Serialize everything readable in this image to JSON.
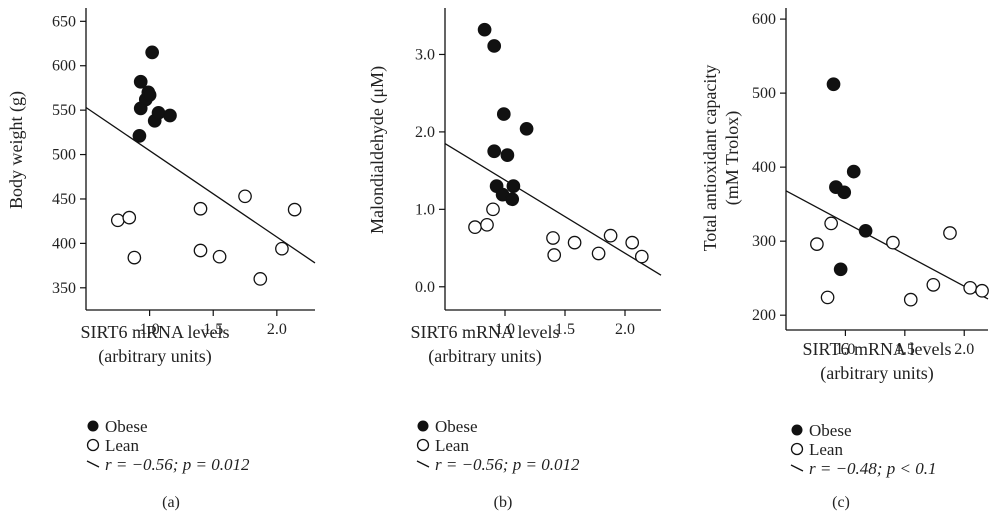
{
  "chart_data": [
    {
      "type": "scatter",
      "panel_label": "(a)",
      "xlabel": "SIRT6 mRNA levels",
      "xlabel2": "(arbitrary units)",
      "ylabel": "Body weight (g)",
      "ylabel2": "",
      "xlim": [
        0.5,
        2.3
      ],
      "ylim": [
        325,
        665
      ],
      "xticks": [
        1.0,
        1.5,
        2.0
      ],
      "xtick_labels": [
        "1.0",
        "1.5",
        "2.0"
      ],
      "yticks": [
        350,
        400,
        450,
        500,
        550,
        600,
        650
      ],
      "ytick_labels": [
        "350",
        "400",
        "450",
        "500",
        "550",
        "600",
        "650"
      ],
      "series": [
        {
          "name": "Obese",
          "marker": "filled-circle",
          "x": [
            0.93,
            0.93,
            0.97,
            0.99,
            1.0,
            1.02,
            1.04,
            1.07,
            1.16,
            0.92
          ],
          "y": [
            582,
            552,
            562,
            570,
            567,
            615,
            538,
            547,
            544,
            521
          ]
        },
        {
          "name": "Lean",
          "marker": "open-circle",
          "x": [
            0.75,
            0.84,
            0.88,
            1.4,
            1.4,
            1.55,
            1.75,
            1.87,
            2.04,
            2.14
          ],
          "y": [
            426,
            429,
            384,
            439,
            392,
            385,
            453,
            360,
            394,
            438
          ]
        }
      ],
      "fit_line": {
        "x": [
          0.5,
          2.3
        ],
        "y": [
          553,
          378
        ]
      },
      "legend": {
        "obese": "Obese",
        "lean": "Lean",
        "line": "r = −0.56; p = 0.012"
      }
    },
    {
      "type": "scatter",
      "panel_label": "(b)",
      "xlabel": "SIRT6 mRNA levels",
      "xlabel2": "(arbitrary units)",
      "ylabel": "Malondialdehyde (μM)",
      "ylabel2": "",
      "xlim": [
        0.5,
        2.3
      ],
      "ylim": [
        -0.3,
        3.6
      ],
      "xticks": [
        1.0,
        1.5,
        2.0
      ],
      "xtick_labels": [
        "1.0",
        "1.5",
        "2.0"
      ],
      "yticks": [
        0.0,
        1.0,
        2.0,
        3.0
      ],
      "ytick_labels": [
        "0.0",
        "1.0",
        "2.0",
        "3.0"
      ],
      "series": [
        {
          "name": "Obese",
          "marker": "filled-circle",
          "x": [
            0.83,
            0.91,
            0.91,
            0.93,
            0.98,
            0.99,
            1.02,
            1.06,
            1.07,
            1.18
          ],
          "y": [
            3.32,
            3.11,
            1.75,
            1.3,
            1.19,
            2.23,
            1.7,
            1.13,
            1.3,
            2.04
          ]
        },
        {
          "name": "Lean",
          "marker": "open-circle",
          "x": [
            0.75,
            0.85,
            0.9,
            1.4,
            1.41,
            1.58,
            1.78,
            1.88,
            2.06,
            2.14
          ],
          "y": [
            0.77,
            0.8,
            1.0,
            0.63,
            0.41,
            0.57,
            0.43,
            0.66,
            0.57,
            0.39
          ]
        },
        {
          "name": "",
          "marker": "line",
          "x": [
            0.5,
            2.3
          ],
          "y": [
            1.85,
            0.15
          ]
        }
      ],
      "legend": {
        "obese": "Obese",
        "lean": "Lean",
        "line": "r = −0.56; p = 0.012"
      }
    },
    {
      "type": "scatter",
      "panel_label": "(c)",
      "xlabel": "SIRT6 mRNA levels",
      "xlabel2": "(arbitrary units)",
      "ylabel": "Total antioxidant capacity",
      "ylabel2": "(mM Trolox)",
      "xlim": [
        0.5,
        2.2
      ],
      "ylim": [
        180,
        615
      ],
      "xticks": [
        1.0,
        1.5,
        2.0
      ],
      "xtick_labels": [
        "1.0",
        "1.5",
        "2.0"
      ],
      "yticks": [
        200,
        300,
        400,
        500,
        600
      ],
      "ytick_labels": [
        "200",
        "300",
        "400",
        "500",
        "600"
      ],
      "series": [
        {
          "name": "Obese",
          "marker": "filled-circle",
          "x": [
            0.9,
            0.92,
            0.96,
            0.99,
            1.07,
            1.17
          ],
          "y": [
            512,
            373,
            262,
            366,
            394,
            314
          ]
        },
        {
          "name": "Lean",
          "marker": "open-circle",
          "x": [
            0.76,
            0.85,
            0.88,
            1.4,
            1.55,
            1.74,
            1.88,
            2.05,
            2.15
          ],
          "y": [
            296,
            224,
            324,
            298,
            221,
            241,
            311,
            237,
            233
          ]
        },
        {
          "name": "",
          "marker": "line",
          "x": [
            0.5,
            2.2
          ],
          "y": [
            368,
            222
          ]
        }
      ],
      "legend": {
        "obese": "Obese",
        "lean": "Lean",
        "line": "r = −0.48; p < 0.1"
      }
    }
  ]
}
